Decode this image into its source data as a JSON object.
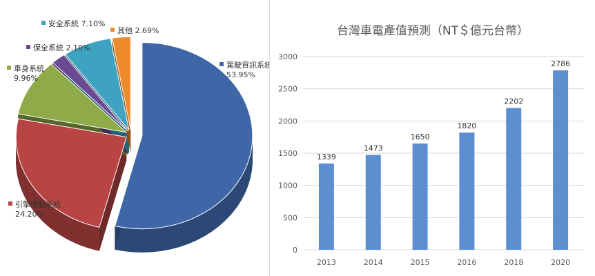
{
  "chart_data": [
    {
      "type": "pie",
      "title": "",
      "legend": "labels beside slices",
      "slices": [
        {
          "label": "駕駛資訊系統",
          "percent_label": "53.95%",
          "value": 53.95,
          "color": "#3f67a8"
        },
        {
          "label": "引擎傳動系統",
          "percent_label": "24.20%",
          "value": 24.2,
          "color": "#b84444"
        },
        {
          "label": "車身系統",
          "percent_label": "9.96%",
          "value": 9.96,
          "color": "#8faa48"
        },
        {
          "label": "保全系統",
          "percent_label": "2.10%",
          "value": 2.1,
          "color": "#6b4a93"
        },
        {
          "label": "安全系統",
          "percent_label": "7.10%",
          "value": 7.1,
          "color": "#3ea3c0"
        },
        {
          "label": "其他",
          "percent_label": "2.69%",
          "value": 2.69,
          "color": "#ec8a2c"
        }
      ]
    },
    {
      "type": "bar",
      "title": "台灣車電產值預測（NT＄億元台幣）",
      "categories": [
        "2013",
        "2014",
        "2015",
        "2016",
        "2018",
        "2020"
      ],
      "values": [
        1339,
        1473,
        1650,
        1820,
        2202,
        2786
      ],
      "ylim": [
        0,
        3000
      ],
      "yticks": [
        0,
        500,
        1000,
        1500,
        2000,
        2500,
        3000
      ],
      "grid": true,
      "color": "#5b8fd0"
    }
  ]
}
